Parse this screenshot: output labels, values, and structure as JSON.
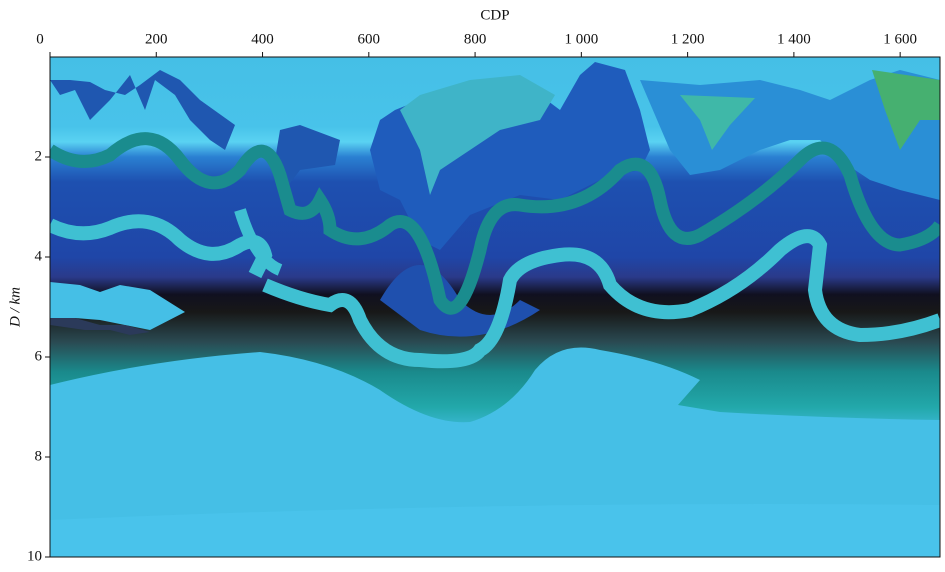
{
  "chart_data": {
    "type": "image",
    "xlabel": "CDP",
    "ylabel": "D / km",
    "xlim": [
      0,
      1675
    ],
    "ylim": [
      0,
      10
    ],
    "y_inverted": true,
    "x_axis_position": "top",
    "xticks": [
      0,
      200,
      400,
      600,
      800,
      {
        "value": 1000,
        "label": "1 000"
      },
      {
        "value": 1200,
        "label": "1 200"
      },
      {
        "value": 1400,
        "label": "1 400"
      },
      {
        "value": 1600,
        "label": "1 600"
      }
    ],
    "yticks": [
      2,
      4,
      6,
      8,
      10
    ]
  }
}
